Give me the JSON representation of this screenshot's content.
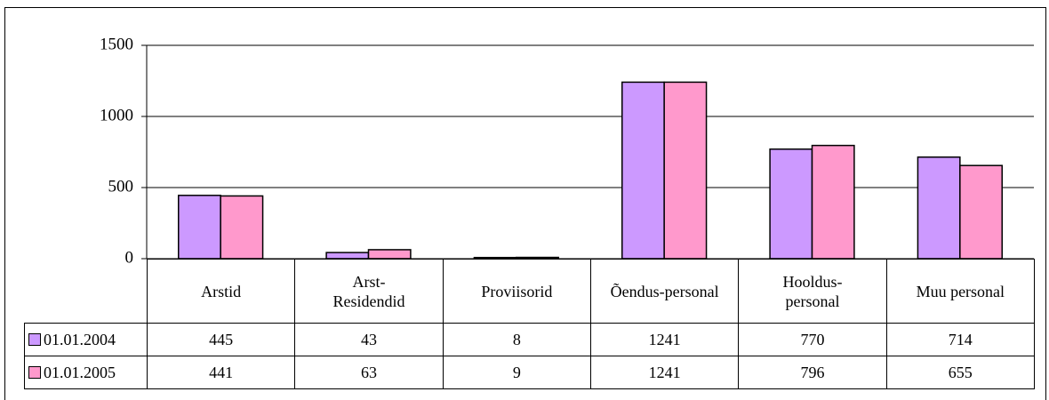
{
  "chart_data": {
    "type": "bar",
    "categories": [
      "Arstid",
      "Arst-\nResidendid",
      "Proviisorid",
      "Õendus-personal",
      "Hooldus-\npersonal",
      "Muu personal"
    ],
    "series": [
      {
        "name": "01.01.2004",
        "color": "#cc99ff",
        "values": [
          445,
          43,
          8,
          1241,
          770,
          714
        ]
      },
      {
        "name": "01.01.2005",
        "color": "#ff99cc",
        "values": [
          441,
          63,
          9,
          1241,
          796,
          655
        ]
      }
    ],
    "ylim": [
      0,
      1500
    ],
    "yticks": [
      0,
      500,
      1000,
      1500
    ],
    "grid": true
  }
}
